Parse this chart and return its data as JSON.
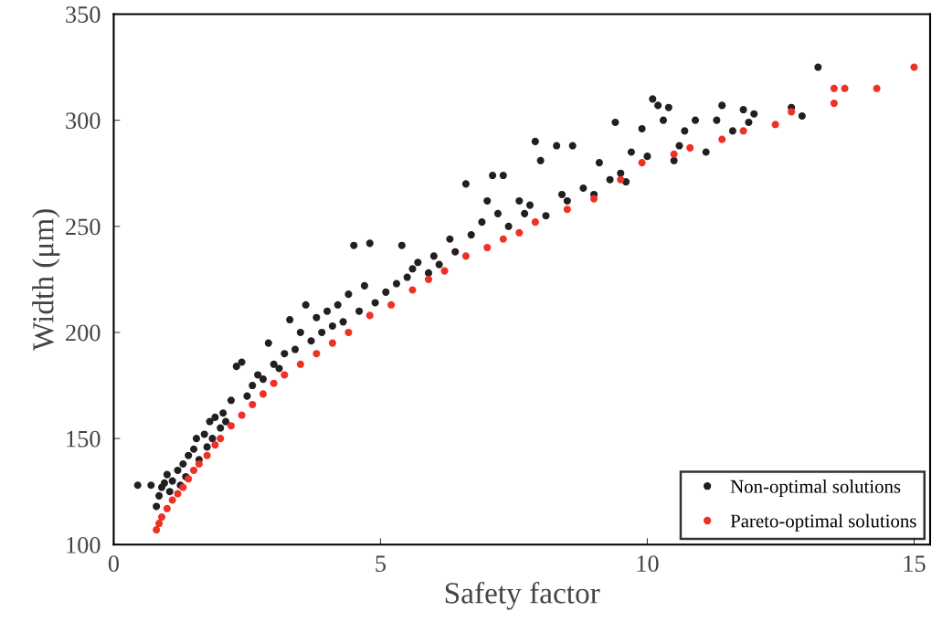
{
  "chart_data": {
    "type": "scatter",
    "xlabel": "Safety factor",
    "ylabel": "Width (μm)",
    "xlim": [
      0,
      15.3
    ],
    "ylim": [
      100,
      350
    ],
    "xticks": [
      0,
      5,
      10,
      15
    ],
    "yticks": [
      100,
      150,
      200,
      250,
      300,
      350
    ],
    "grid": false,
    "legend": "bottom right",
    "marker": "circle",
    "series": [
      {
        "name": "Non-optimal solutions",
        "color": "#231f20",
        "x": [
          0.45,
          0.7,
          0.8,
          0.85,
          0.9,
          0.95,
          1.0,
          1.05,
          1.1,
          1.2,
          1.25,
          1.3,
          1.35,
          1.4,
          1.5,
          1.55,
          1.6,
          1.7,
          1.75,
          1.8,
          1.85,
          1.9,
          2.0,
          2.05,
          2.1,
          2.2,
          2.3,
          2.4,
          2.5,
          2.6,
          2.7,
          2.8,
          2.9,
          3.0,
          3.1,
          3.2,
          3.3,
          3.4,
          3.5,
          3.6,
          3.7,
          3.8,
          3.9,
          4.0,
          4.1,
          4.2,
          4.3,
          4.4,
          4.5,
          4.6,
          4.7,
          4.8,
          4.9,
          5.1,
          5.3,
          5.4,
          5.5,
          5.6,
          5.7,
          5.9,
          6.0,
          6.1,
          6.3,
          6.4,
          6.6,
          6.7,
          6.9,
          7.0,
          7.1,
          7.2,
          7.3,
          7.4,
          7.6,
          7.7,
          7.8,
          7.9,
          8.0,
          8.1,
          8.3,
          8.4,
          8.5,
          8.6,
          8.8,
          9.0,
          9.1,
          9.3,
          9.4,
          9.5,
          9.6,
          9.7,
          9.9,
          10.0,
          10.1,
          10.2,
          10.3,
          10.4,
          10.5,
          10.6,
          10.7,
          10.9,
          11.1,
          11.3,
          11.4,
          11.6,
          11.8,
          11.9,
          12.0,
          12.7,
          12.9,
          13.2
        ],
        "values": [
          128,
          128,
          118,
          123,
          127,
          129,
          133,
          125,
          130,
          135,
          128,
          138,
          132,
          142,
          145,
          150,
          140,
          152,
          146,
          158,
          150,
          160,
          155,
          162,
          158,
          168,
          184,
          186,
          170,
          175,
          180,
          178,
          195,
          185,
          183,
          190,
          206,
          192,
          200,
          213,
          196,
          207,
          200,
          210,
          203,
          213,
          205,
          218,
          241,
          210,
          222,
          242,
          214,
          219,
          223,
          241,
          226,
          230,
          233,
          228,
          236,
          232,
          244,
          238,
          270,
          246,
          252,
          262,
          274,
          256,
          274,
          250,
          262,
          256,
          260,
          290,
          281,
          255,
          288,
          265,
          262,
          288,
          268,
          265,
          280,
          272,
          299,
          275,
          271,
          285,
          296,
          283,
          310,
          307,
          300,
          306,
          281,
          288,
          295,
          300,
          285,
          300,
          307,
          295,
          305,
          299,
          303,
          306,
          302,
          325
        ]
      },
      {
        "name": "Pareto-optimal solutions",
        "color": "#ee3124",
        "x": [
          0.8,
          0.85,
          0.9,
          1.0,
          1.1,
          1.2,
          1.3,
          1.4,
          1.5,
          1.6,
          1.75,
          1.9,
          2.0,
          2.2,
          2.4,
          2.6,
          2.8,
          3.0,
          3.2,
          3.5,
          3.8,
          4.1,
          4.4,
          4.8,
          5.2,
          5.6,
          5.9,
          6.2,
          6.6,
          7.0,
          7.3,
          7.6,
          7.9,
          8.5,
          9.0,
          9.5,
          9.9,
          10.5,
          10.8,
          11.4,
          11.8,
          12.4,
          12.7,
          13.5,
          13.5,
          13.7,
          14.3,
          15.0
        ],
        "values": [
          107,
          110,
          113,
          117,
          121,
          124,
          127,
          131,
          135,
          138,
          142,
          147,
          150,
          156,
          161,
          166,
          171,
          176,
          180,
          185,
          190,
          195,
          200,
          208,
          213,
          220,
          225,
          229,
          236,
          240,
          244,
          247,
          252,
          258,
          263,
          272,
          280,
          284,
          287,
          291,
          295,
          298,
          304,
          308,
          315,
          315,
          315,
          325
        ]
      }
    ]
  }
}
